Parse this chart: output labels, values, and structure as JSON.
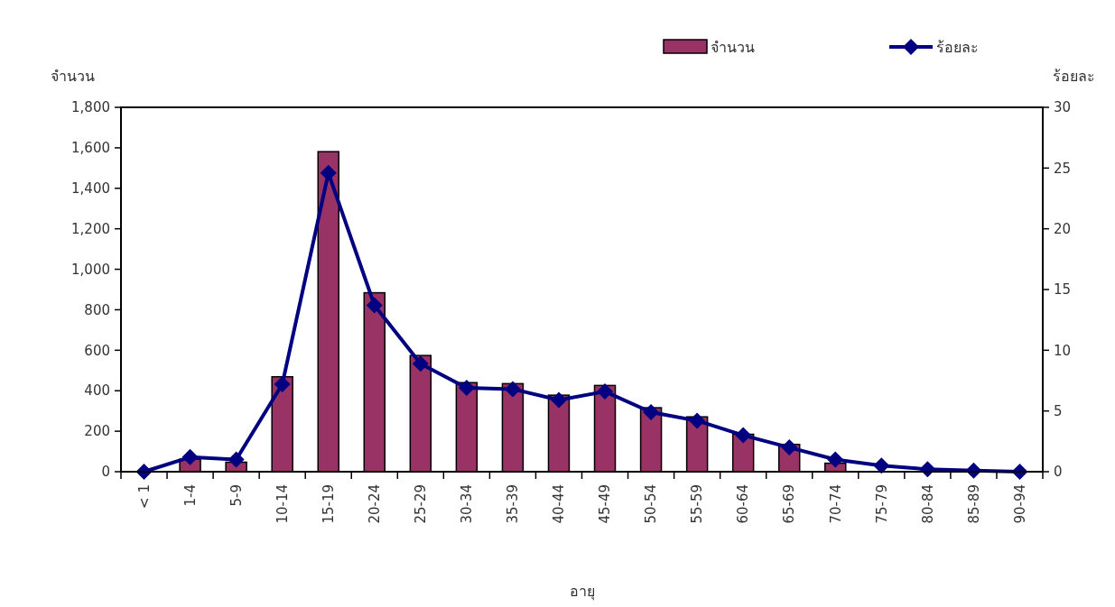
{
  "chart_data": {
    "type": "bar",
    "xlabel": "อายุ",
    "ylabel": "จำนวน",
    "y2label": "ร้อยละ",
    "categories": [
      "< 1",
      "1-4",
      "5-9",
      "10-14",
      "15-19",
      "20-24",
      "25-29",
      "30-34",
      "35-39",
      "40-44",
      "45-49",
      "50-54",
      "55-59",
      "60-64",
      "65-69",
      "70-74",
      "75-79",
      "80-84",
      "85-89",
      "90-94"
    ],
    "series": [
      {
        "name": "จำนวน",
        "color": "#993366",
        "values": [
          0,
          62,
          47,
          469,
          1581,
          884,
          574,
          440,
          435,
          378,
          426,
          316,
          271,
          185,
          135,
          42,
          null,
          null,
          null,
          null
        ]
      },
      {
        "name": "ร้อยละ",
        "type": "line",
        "axis": "y2",
        "color": "#000080",
        "marker": "diamond",
        "values": [
          0,
          1.2,
          1.0,
          7.2,
          24.6,
          13.7,
          8.9,
          6.9,
          6.8,
          5.9,
          6.6,
          4.9,
          4.2,
          3.0,
          2.0,
          1.0,
          0.5,
          0.2,
          0.1,
          0.0
        ]
      }
    ],
    "ylim": [
      0,
      1800
    ],
    "yticks": [
      {
        "value": 0,
        "label": "0"
      },
      {
        "value": 200,
        "label": "200"
      },
      {
        "value": 400,
        "label": "400"
      },
      {
        "value": 600,
        "label": "600"
      },
      {
        "value": 800,
        "label": "800"
      },
      {
        "value": 1000,
        "label": "1,000"
      },
      {
        "value": 1200,
        "label": "1,200"
      },
      {
        "value": 1400,
        "label": "1,400"
      },
      {
        "value": 1600,
        "label": "1,600"
      },
      {
        "value": 1800,
        "label": "1,800"
      }
    ],
    "y2lim": [
      0,
      30
    ],
    "y2ticks": [
      0,
      5,
      10,
      15,
      20,
      25,
      30
    ],
    "legend": "top right",
    "grid": false
  }
}
